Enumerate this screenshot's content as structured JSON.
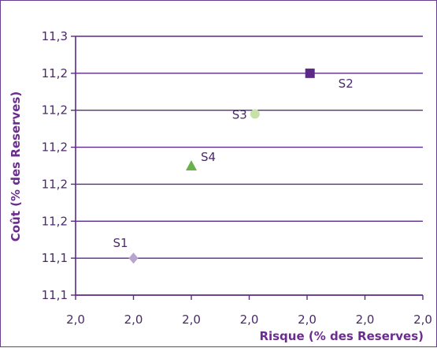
{
  "chart_data": {
    "type": "scatter",
    "xlabel": "Risque (% des Reserves)",
    "ylabel": "Coût (% des Reserves)",
    "x_tick_labels": [
      "2,0",
      "2,0",
      "2,0",
      "2,0",
      "2,0",
      "2,0",
      "2,0"
    ],
    "y_tick_labels": [
      "11,3",
      "11,2",
      "11,2",
      "11,2",
      "11,2",
      "11,2",
      "11,1",
      "11,1"
    ],
    "xlim": [
      0,
      6
    ],
    "ylim": [
      0,
      7
    ],
    "grid": "horizontal",
    "points": [
      {
        "label": "S1",
        "x": 1.0,
        "y": 1.0,
        "marker": "diamond",
        "color": "#b7a4cf"
      },
      {
        "label": "S4",
        "x": 2.0,
        "y": 3.5,
        "marker": "triangle",
        "color": "#6ab04c"
      },
      {
        "label": "S3",
        "x": 3.1,
        "y": 4.9,
        "marker": "circle",
        "color": "#c6e2a6"
      },
      {
        "label": "S2",
        "x": 4.05,
        "y": 6.0,
        "marker": "square",
        "color": "#5b2a86"
      }
    ],
    "colors": {
      "axis": "#5b2a86",
      "grid": "#5b2a86",
      "text": "#4a2a6a"
    }
  }
}
